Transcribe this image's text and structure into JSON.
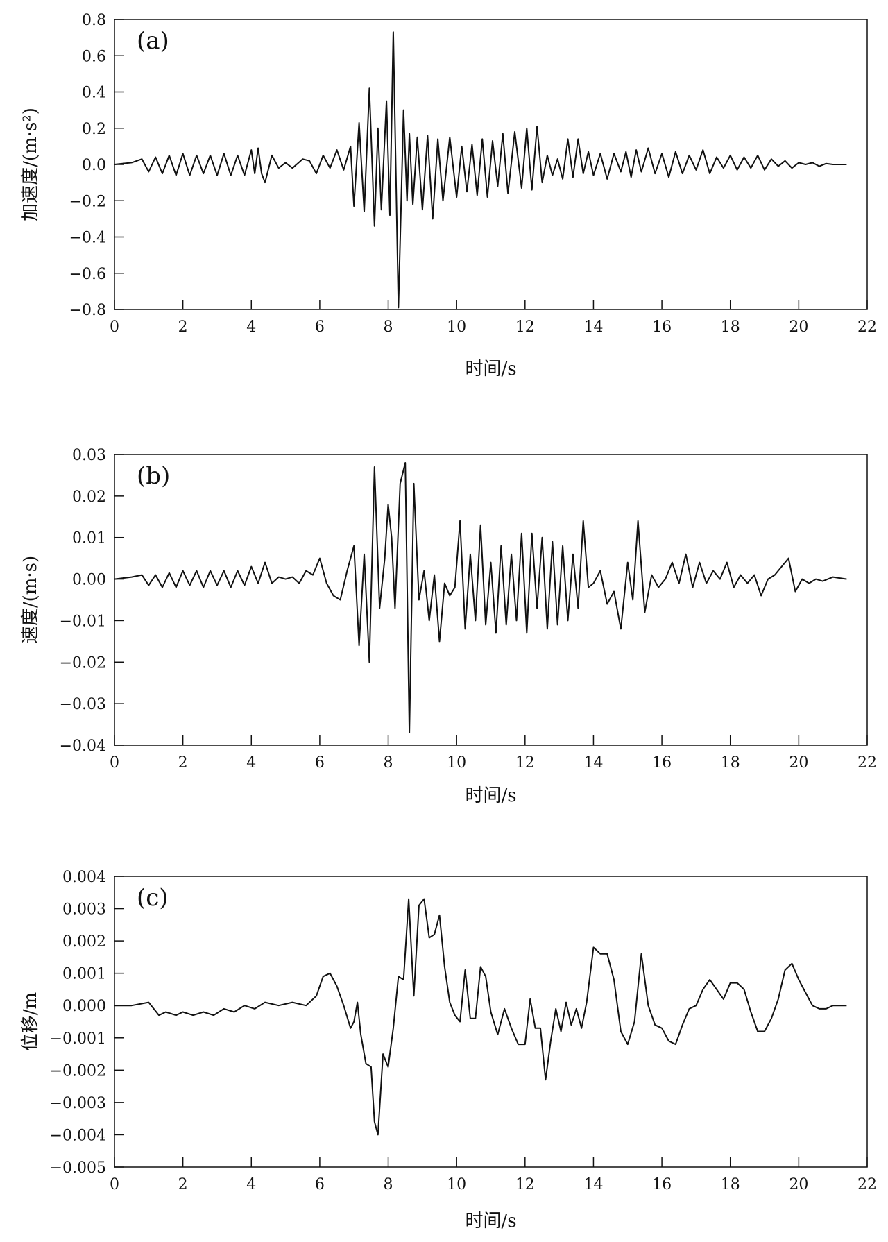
{
  "chart_data": [
    {
      "type": "line",
      "panel_label": "(a)",
      "xlabel": "时间/s",
      "ylabel": "加速度/(m·s²)",
      "xlim": [
        0,
        22
      ],
      "ylim": [
        -0.8,
        0.8
      ],
      "x_ticks": [
        "0",
        "2",
        "4",
        "6",
        "8",
        "10",
        "12",
        "14",
        "16",
        "18",
        "20",
        "22"
      ],
      "y_ticks": [
        "0.8",
        "0.6",
        "0.4",
        "0.2",
        "0.0",
        "−0.2",
        "−0.4",
        "−0.6",
        "−0.8"
      ],
      "legend": "none",
      "grid": false,
      "series": [
        {
          "x": [
            0,
            0.5,
            0.8,
            1.0,
            1.2,
            1.4,
            1.6,
            1.8,
            2.0,
            2.2,
            2.4,
            2.6,
            2.8,
            3.0,
            3.2,
            3.4,
            3.6,
            3.8,
            4.0,
            4.1,
            4.2,
            4.3,
            4.4,
            4.6,
            4.8,
            5.0,
            5.2,
            5.5,
            5.7,
            5.9,
            6.1,
            6.3,
            6.5,
            6.7,
            6.9,
            7.0,
            7.15,
            7.3,
            7.45,
            7.6,
            7.7,
            7.8,
            7.95,
            8.05,
            8.15,
            8.3,
            8.45,
            8.55,
            8.62,
            8.72,
            8.85,
            9.0,
            9.15,
            9.3,
            9.45,
            9.6,
            9.8,
            10.0,
            10.15,
            10.3,
            10.45,
            10.6,
            10.75,
            10.9,
            11.05,
            11.2,
            11.35,
            11.5,
            11.7,
            11.9,
            12.05,
            12.2,
            12.35,
            12.5,
            12.65,
            12.8,
            12.95,
            13.1,
            13.25,
            13.4,
            13.55,
            13.7,
            13.85,
            14.0,
            14.2,
            14.4,
            14.6,
            14.8,
            14.95,
            15.1,
            15.25,
            15.4,
            15.6,
            15.8,
            16.0,
            16.2,
            16.4,
            16.6,
            16.8,
            17.0,
            17.2,
            17.4,
            17.6,
            17.8,
            18.0,
            18.2,
            18.4,
            18.6,
            18.8,
            19.0,
            19.2,
            19.4,
            19.6,
            19.8,
            20.0,
            20.2,
            20.4,
            20.6,
            20.8,
            21.0,
            21.4
          ],
          "y": [
            0,
            0.01,
            0.03,
            -0.04,
            0.04,
            -0.05,
            0.05,
            -0.06,
            0.06,
            -0.06,
            0.05,
            -0.05,
            0.05,
            -0.06,
            0.06,
            -0.06,
            0.05,
            -0.06,
            0.08,
            -0.05,
            0.09,
            -0.05,
            -0.1,
            0.05,
            -0.02,
            0.01,
            -0.02,
            0.03,
            0.02,
            -0.05,
            0.05,
            -0.02,
            0.08,
            -0.03,
            0.1,
            -0.23,
            0.23,
            -0.26,
            0.42,
            -0.34,
            0.2,
            -0.25,
            0.35,
            -0.28,
            0.73,
            -0.79,
            0.3,
            -0.2,
            0.17,
            -0.22,
            0.15,
            -0.25,
            0.16,
            -0.3,
            0.14,
            -0.2,
            0.15,
            -0.18,
            0.1,
            -0.15,
            0.11,
            -0.17,
            0.14,
            -0.18,
            0.13,
            -0.12,
            0.17,
            -0.16,
            0.18,
            -0.13,
            0.2,
            -0.14,
            0.21,
            -0.1,
            0.05,
            -0.06,
            0.03,
            -0.08,
            0.14,
            -0.07,
            0.14,
            -0.05,
            0.07,
            -0.06,
            0.06,
            -0.08,
            0.06,
            -0.04,
            0.07,
            -0.07,
            0.08,
            -0.04,
            0.09,
            -0.05,
            0.06,
            -0.07,
            0.07,
            -0.05,
            0.05,
            -0.03,
            0.08,
            -0.05,
            0.04,
            -0.02,
            0.05,
            -0.03,
            0.04,
            -0.02,
            0.05,
            -0.03,
            0.03,
            -0.01,
            0.02,
            -0.02,
            0.01,
            0.0,
            0.01,
            -0.01,
            0.005,
            0.0,
            0.0
          ]
        }
      ]
    },
    {
      "type": "line",
      "panel_label": "(b)",
      "xlabel": "时间/s",
      "ylabel": "速度/(m·s)",
      "xlim": [
        0,
        22
      ],
      "ylim": [
        -0.04,
        0.03
      ],
      "x_ticks": [
        "0",
        "2",
        "4",
        "6",
        "8",
        "10",
        "12",
        "14",
        "16",
        "18",
        "20",
        "22"
      ],
      "y_ticks": [
        "0.03",
        "0.02",
        "0.01",
        "0.00",
        "−0.01",
        "−0.02",
        "−0.03",
        "−0.04"
      ],
      "legend": "none",
      "grid": false,
      "series": [
        {
          "x": [
            0,
            0.5,
            0.8,
            1.0,
            1.2,
            1.4,
            1.6,
            1.8,
            2.0,
            2.2,
            2.4,
            2.6,
            2.8,
            3.0,
            3.2,
            3.4,
            3.6,
            3.8,
            4.0,
            4.2,
            4.4,
            4.6,
            4.8,
            5.0,
            5.2,
            5.4,
            5.6,
            5.8,
            6.0,
            6.2,
            6.4,
            6.6,
            6.8,
            7.0,
            7.15,
            7.3,
            7.45,
            7.6,
            7.75,
            7.9,
            8.0,
            8.1,
            8.2,
            8.35,
            8.5,
            8.62,
            8.75,
            8.9,
            9.05,
            9.2,
            9.35,
            9.5,
            9.65,
            9.8,
            9.95,
            10.1,
            10.25,
            10.4,
            10.55,
            10.7,
            10.85,
            11.0,
            11.15,
            11.3,
            11.45,
            11.6,
            11.75,
            11.9,
            12.05,
            12.2,
            12.35,
            12.5,
            12.65,
            12.8,
            12.95,
            13.1,
            13.25,
            13.4,
            13.55,
            13.7,
            13.85,
            14.0,
            14.2,
            14.4,
            14.6,
            14.8,
            15.0,
            15.15,
            15.3,
            15.5,
            15.7,
            15.9,
            16.1,
            16.3,
            16.5,
            16.7,
            16.9,
            17.1,
            17.3,
            17.5,
            17.7,
            17.9,
            18.1,
            18.3,
            18.5,
            18.7,
            18.9,
            19.1,
            19.3,
            19.5,
            19.7,
            19.9,
            20.1,
            20.3,
            20.5,
            20.7,
            21.0,
            21.4
          ],
          "y": [
            0,
            0.0005,
            0.001,
            -0.0015,
            0.001,
            -0.002,
            0.0015,
            -0.002,
            0.002,
            -0.0015,
            0.002,
            -0.002,
            0.002,
            -0.0015,
            0.002,
            -0.002,
            0.002,
            -0.0015,
            0.003,
            -0.001,
            0.004,
            -0.001,
            0.0005,
            0.0,
            0.0005,
            -0.001,
            0.002,
            0.001,
            0.005,
            -0.001,
            -0.004,
            -0.005,
            0.002,
            0.008,
            -0.016,
            0.006,
            -0.02,
            0.027,
            -0.007,
            0.005,
            0.018,
            0.01,
            -0.007,
            0.023,
            0.028,
            -0.037,
            0.023,
            -0.005,
            0.002,
            -0.01,
            0.001,
            -0.015,
            -0.001,
            -0.004,
            -0.002,
            0.014,
            -0.012,
            0.006,
            -0.01,
            0.013,
            -0.011,
            0.004,
            -0.013,
            0.008,
            -0.011,
            0.006,
            -0.01,
            0.011,
            -0.013,
            0.011,
            -0.007,
            0.01,
            -0.012,
            0.009,
            -0.011,
            0.008,
            -0.01,
            0.006,
            -0.007,
            0.014,
            -0.002,
            -0.001,
            0.002,
            -0.006,
            -0.003,
            -0.012,
            0.004,
            -0.005,
            0.014,
            -0.008,
            0.001,
            -0.002,
            0.0,
            0.004,
            -0.001,
            0.006,
            -0.002,
            0.004,
            -0.001,
            0.002,
            0.0,
            0.004,
            -0.002,
            0.001,
            -0.001,
            0.001,
            -0.004,
            0.0,
            0.001,
            0.003,
            0.005,
            -0.003,
            0.0,
            -0.001,
            0.0,
            -0.0005,
            0.0005,
            0.0
          ]
        }
      ]
    },
    {
      "type": "line",
      "panel_label": "(c)",
      "xlabel": "时间/s",
      "ylabel": "位移/m",
      "xlim": [
        0,
        22
      ],
      "ylim": [
        -0.005,
        0.004
      ],
      "x_ticks": [
        "0",
        "2",
        "4",
        "6",
        "8",
        "10",
        "12",
        "14",
        "16",
        "18",
        "20",
        "22"
      ],
      "y_ticks": [
        "0.004",
        "0.003",
        "0.002",
        "0.001",
        "0.000",
        "−0.001",
        "−0.002",
        "−0.003",
        "−0.004",
        "−0.005"
      ],
      "legend": "none",
      "grid": false,
      "series": [
        {
          "x": [
            0,
            0.5,
            1.0,
            1.3,
            1.5,
            1.8,
            2.0,
            2.3,
            2.6,
            2.9,
            3.2,
            3.5,
            3.8,
            4.1,
            4.4,
            4.8,
            5.2,
            5.6,
            5.9,
            6.1,
            6.3,
            6.5,
            6.7,
            6.9,
            7.0,
            7.1,
            7.2,
            7.35,
            7.5,
            7.6,
            7.7,
            7.85,
            8.0,
            8.15,
            8.3,
            8.45,
            8.6,
            8.75,
            8.9,
            9.05,
            9.2,
            9.35,
            9.5,
            9.65,
            9.8,
            9.95,
            10.1,
            10.25,
            10.4,
            10.55,
            10.7,
            10.85,
            11.0,
            11.2,
            11.4,
            11.6,
            11.8,
            12.0,
            12.15,
            12.3,
            12.45,
            12.6,
            12.75,
            12.9,
            13.05,
            13.2,
            13.35,
            13.5,
            13.65,
            13.8,
            14.0,
            14.2,
            14.4,
            14.6,
            14.8,
            15.0,
            15.2,
            15.4,
            15.6,
            15.8,
            16.0,
            16.2,
            16.4,
            16.6,
            16.8,
            17.0,
            17.2,
            17.4,
            17.6,
            17.8,
            18.0,
            18.2,
            18.4,
            18.6,
            18.8,
            19.0,
            19.2,
            19.4,
            19.6,
            19.8,
            20.0,
            20.2,
            20.4,
            20.6,
            20.8,
            21.0,
            21.4
          ],
          "y": [
            0,
            0.0,
            0.0001,
            -0.0003,
            -0.0002,
            -0.0003,
            -0.0002,
            -0.0003,
            -0.0002,
            -0.0003,
            -0.0001,
            -0.0002,
            0.0,
            -0.0001,
            0.0001,
            0.0,
            0.0001,
            0.0,
            0.0003,
            0.0009,
            0.001,
            0.0006,
            0.0,
            -0.0007,
            -0.0005,
            0.0001,
            -0.0009,
            -0.0018,
            -0.0019,
            -0.0036,
            -0.004,
            -0.0015,
            -0.0019,
            -0.0007,
            0.0009,
            0.0008,
            0.0033,
            0.0003,
            0.0031,
            0.0033,
            0.0021,
            0.0022,
            0.0028,
            0.0012,
            0.0001,
            -0.0003,
            -0.0005,
            0.0011,
            -0.0004,
            -0.0004,
            0.0012,
            0.0009,
            -0.0002,
            -0.0009,
            -0.0001,
            -0.0007,
            -0.0012,
            -0.0012,
            0.0002,
            -0.0007,
            -0.0007,
            -0.0023,
            -0.0011,
            -0.0001,
            -0.0008,
            0.0001,
            -0.0006,
            -0.0001,
            -0.0007,
            0.0001,
            0.0018,
            0.0016,
            0.0016,
            0.0008,
            -0.0008,
            -0.0012,
            -0.0005,
            0.0016,
            0.0,
            -0.0006,
            -0.0007,
            -0.0011,
            -0.0012,
            -0.0006,
            -0.0001,
            0.0,
            0.0005,
            0.0008,
            0.0005,
            0.0002,
            0.0007,
            0.0007,
            0.0005,
            -0.0002,
            -0.0008,
            -0.0008,
            -0.0004,
            0.0002,
            0.0011,
            0.0013,
            0.0008,
            0.0004,
            0.0,
            -0.0001,
            -0.0001,
            0.0,
            0.0
          ]
        }
      ]
    }
  ]
}
